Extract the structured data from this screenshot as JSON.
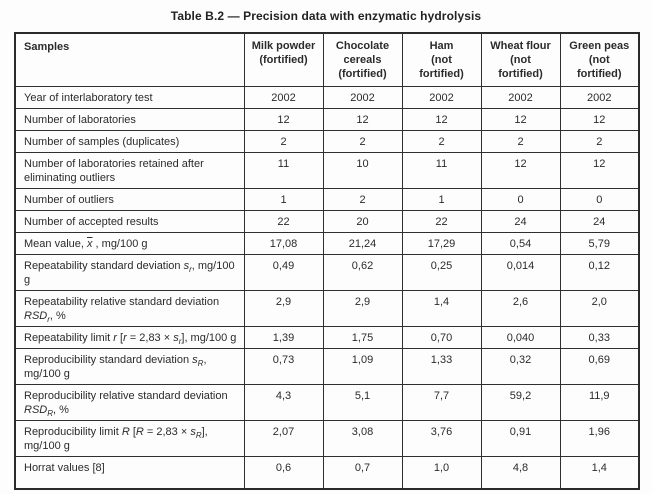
{
  "page": {
    "title": "Table B.2 — Precision data with enzymatic hydrolysis"
  },
  "table": {
    "corner_header": "Samples",
    "column_headers": [
      "Milk powder\n(fortified)",
      "Chocolate\ncereals\n(fortified)",
      "Ham\n(not\nfortified)",
      "Wheat flour\n(not\nfortified)",
      "Green peas\n(not\nfortified)"
    ],
    "rows": [
      {
        "label": [
          {
            "t": "Year of interlaboratory test"
          }
        ],
        "values": [
          "2002",
          "2002",
          "2002",
          "2002",
          "2002"
        ]
      },
      {
        "label": [
          {
            "t": "Number of laboratories"
          }
        ],
        "values": [
          "12",
          "12",
          "12",
          "12",
          "12"
        ]
      },
      {
        "label": [
          {
            "t": "Number of samples (duplicates)"
          }
        ],
        "values": [
          "2",
          "2",
          "2",
          "2",
          "2"
        ]
      },
      {
        "label": [
          {
            "t": "Number of laboratories retained after eliminating outliers"
          }
        ],
        "values": [
          "11",
          "10",
          "11",
          "12",
          "12"
        ]
      },
      {
        "label": [
          {
            "t": "Number of outliers"
          }
        ],
        "values": [
          "1",
          "2",
          "1",
          "0",
          "0"
        ]
      },
      {
        "label": [
          {
            "t": "Number of accepted results"
          }
        ],
        "values": [
          "22",
          "20",
          "22",
          "24",
          "24"
        ]
      },
      {
        "label": [
          {
            "t": "Mean value, "
          },
          {
            "t": "x",
            "f": "xbar"
          },
          {
            "t": " , mg/100 g"
          }
        ],
        "values": [
          "17,08",
          "21,24",
          "17,29",
          "0,54",
          "5,79"
        ]
      },
      {
        "label": [
          {
            "t": "Repeatability standard deviation "
          },
          {
            "t": "s",
            "f": "i"
          },
          {
            "t": "r",
            "f": "sub"
          },
          {
            "t": ", mg/100 g"
          }
        ],
        "values": [
          "0,49",
          "0,62",
          "0,25",
          "0,014",
          "0,12"
        ]
      },
      {
        "label": [
          {
            "t": "Repeatability relative standard deviation "
          },
          {
            "t": "RSD",
            "f": "i"
          },
          {
            "t": "r",
            "f": "sub"
          },
          {
            "t": ", %"
          }
        ],
        "values": [
          "2,9",
          "2,9",
          "1,4",
          "2,6",
          "2,0"
        ]
      },
      {
        "label": [
          {
            "t": "Repeatability limit "
          },
          {
            "t": "r",
            "f": "i"
          },
          {
            "t": " ["
          },
          {
            "t": "r",
            "f": "i"
          },
          {
            "t": " = 2,83 × "
          },
          {
            "t": "s",
            "f": "i"
          },
          {
            "t": "r",
            "f": "sub"
          },
          {
            "t": "], mg/100 g"
          }
        ],
        "values": [
          "1,39",
          "1,75",
          "0,70",
          "0,040",
          "0,33"
        ]
      },
      {
        "label": [
          {
            "t": "Reproducibility standard deviation "
          },
          {
            "t": "s",
            "f": "i"
          },
          {
            "t": "R",
            "f": "sub"
          },
          {
            "t": ", mg/100 g"
          }
        ],
        "values": [
          "0,73",
          "1,09",
          "1,33",
          "0,32",
          "0,69"
        ]
      },
      {
        "label": [
          {
            "t": "Reproducibility relative standard deviation "
          },
          {
            "t": "RSD",
            "f": "i"
          },
          {
            "t": "R",
            "f": "sub"
          },
          {
            "t": ", %"
          }
        ],
        "values": [
          "4,3",
          "5,1",
          "7,7",
          "59,2",
          "11,9"
        ]
      },
      {
        "label": [
          {
            "t": "Reproducibility limit "
          },
          {
            "t": "R",
            "f": "i"
          },
          {
            "t": " ["
          },
          {
            "t": "R",
            "f": "i"
          },
          {
            "t": " = 2,83 × "
          },
          {
            "t": "s",
            "f": "i"
          },
          {
            "t": "R",
            "f": "sub"
          },
          {
            "t": "], mg/100 g"
          }
        ],
        "values": [
          "2,07",
          "3,08",
          "3,76",
          "0,91",
          "1,96"
        ]
      },
      {
        "label": [
          {
            "t": "Horrat values [8]"
          }
        ],
        "values": [
          "0,6",
          "0,7",
          "1,0",
          "4,8",
          "1,4"
        ]
      }
    ]
  }
}
